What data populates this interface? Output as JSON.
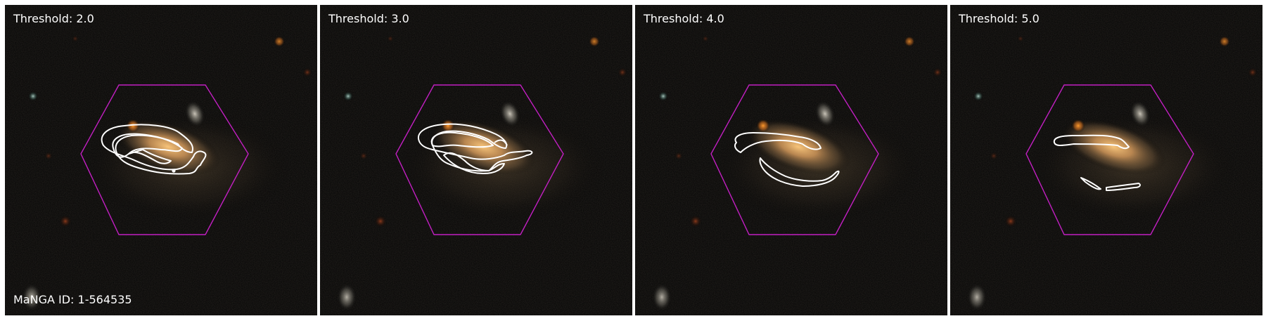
{
  "panels": [
    {
      "threshold_label": "Threshold: 2.0",
      "threshold": 2.0
    },
    {
      "threshold_label": "Threshold: 3.0",
      "threshold": 3.0
    },
    {
      "threshold_label": "Threshold: 4.0",
      "threshold": 4.0
    },
    {
      "threshold_label": "Threshold: 5.0",
      "threshold": 5.0
    }
  ],
  "manga_label": "MaNGA ID: 1-564535",
  "colors": {
    "background": "#030303",
    "hexagon": "#c21fc2",
    "contour": "#ffffff",
    "galaxy_core": "#f0b766",
    "label_text": "#ffffff"
  }
}
